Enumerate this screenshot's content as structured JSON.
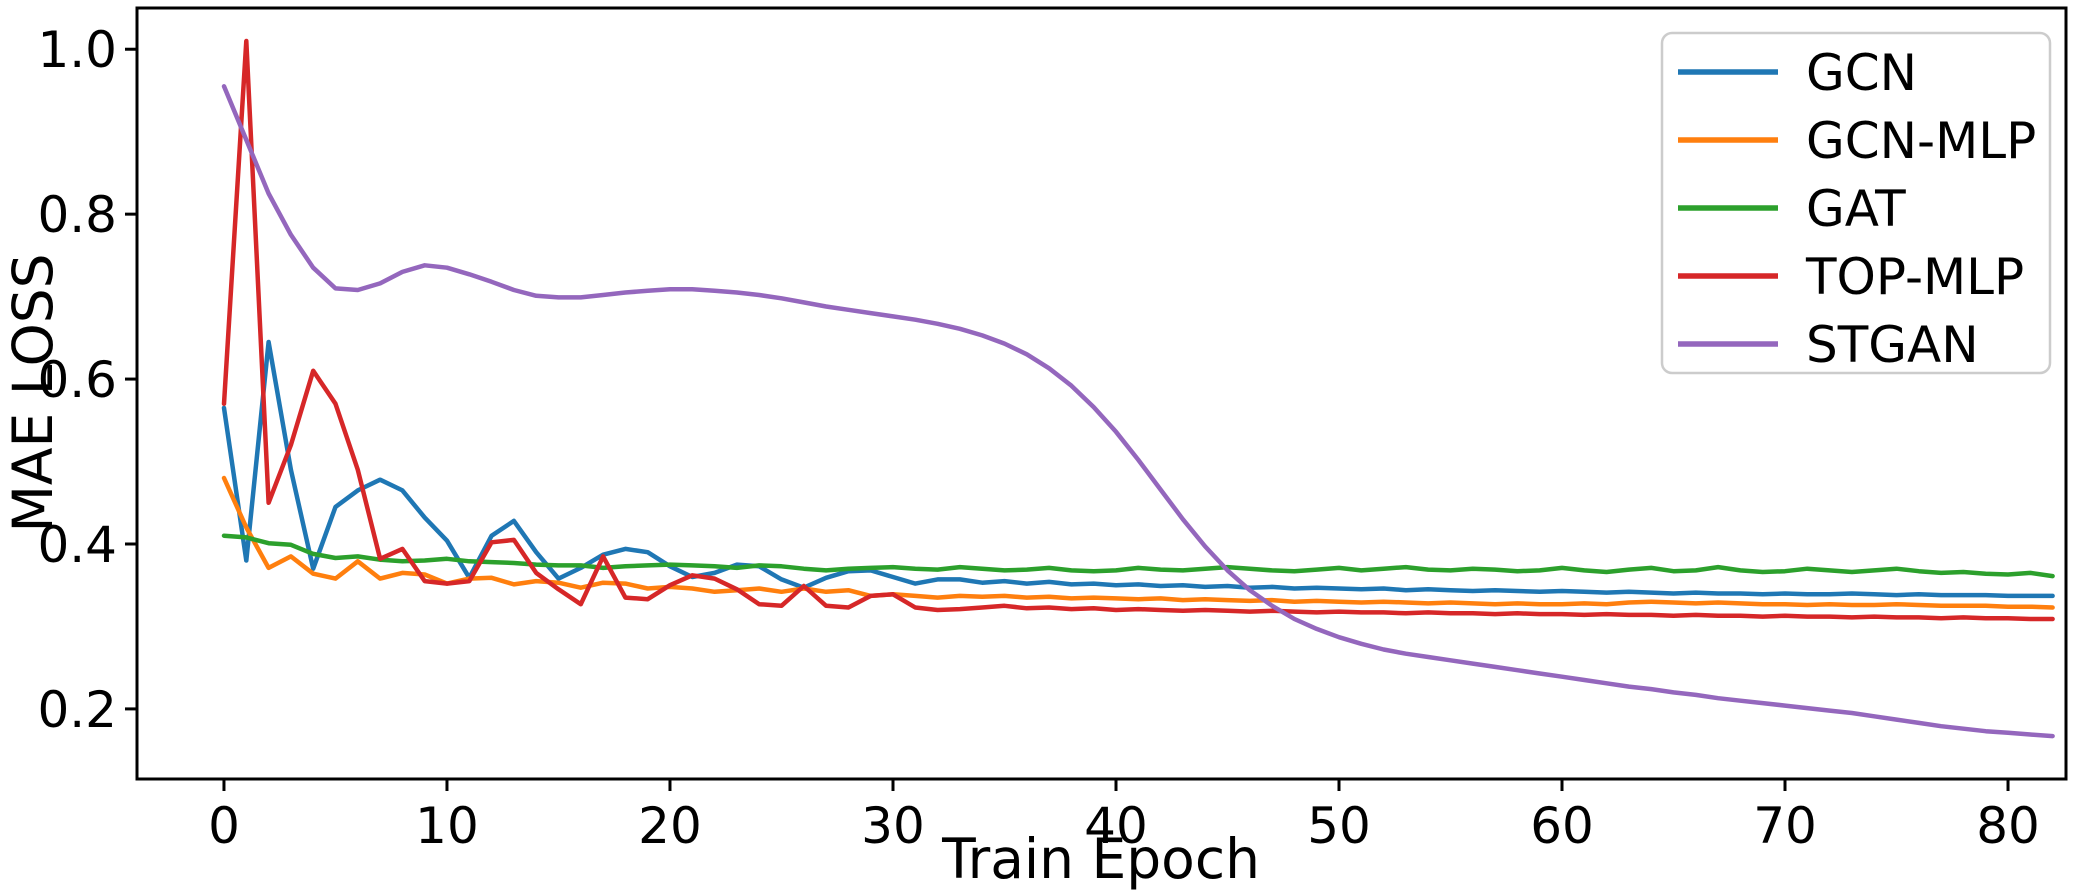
{
  "chart_data": {
    "type": "line",
    "title": "",
    "xlabel": "Train Epoch",
    "ylabel": "MAE LOSS",
    "xlim": [
      -3.9,
      82.6
    ],
    "ylim": [
      0.115,
      1.05
    ],
    "xticks": [
      0,
      10,
      20,
      30,
      40,
      50,
      60,
      70,
      80
    ],
    "xtick_labels": [
      "0",
      "10",
      "20",
      "30",
      "40",
      "50",
      "60",
      "70",
      "80"
    ],
    "yticks": [
      0.2,
      0.4,
      0.6,
      0.8,
      1.0
    ],
    "ytick_labels": [
      "0.2",
      "0.4",
      "0.6",
      "0.8",
      "1.0"
    ],
    "grid": false,
    "legend_position": "upper right",
    "x_is_epoch_index_from": 0,
    "series": [
      {
        "name": "GCN",
        "color": "#1f77b4",
        "values": [
          0.565,
          0.38,
          0.645,
          0.49,
          0.37,
          0.445,
          0.465,
          0.478,
          0.465,
          0.432,
          0.404,
          0.359,
          0.41,
          0.428,
          0.39,
          0.358,
          0.371,
          0.387,
          0.394,
          0.39,
          0.373,
          0.36,
          0.365,
          0.375,
          0.373,
          0.357,
          0.347,
          0.359,
          0.367,
          0.368,
          0.36,
          0.352,
          0.357,
          0.357,
          0.353,
          0.355,
          0.352,
          0.354,
          0.351,
          0.352,
          0.35,
          0.351,
          0.349,
          0.35,
          0.348,
          0.349,
          0.347,
          0.348,
          0.346,
          0.347,
          0.346,
          0.345,
          0.346,
          0.344,
          0.345,
          0.344,
          0.343,
          0.344,
          0.343,
          0.342,
          0.343,
          0.342,
          0.341,
          0.342,
          0.341,
          0.34,
          0.341,
          0.34,
          0.34,
          0.339,
          0.34,
          0.339,
          0.339,
          0.34,
          0.339,
          0.338,
          0.339,
          0.338,
          0.338,
          0.338,
          0.337,
          0.337,
          0.337
        ]
      },
      {
        "name": "GCN-MLP",
        "color": "#ff7f0e",
        "values": [
          0.48,
          0.42,
          0.371,
          0.385,
          0.364,
          0.358,
          0.379,
          0.358,
          0.365,
          0.363,
          0.352,
          0.358,
          0.359,
          0.351,
          0.355,
          0.353,
          0.347,
          0.353,
          0.352,
          0.346,
          0.348,
          0.346,
          0.342,
          0.344,
          0.346,
          0.342,
          0.346,
          0.342,
          0.344,
          0.337,
          0.339,
          0.337,
          0.335,
          0.337,
          0.336,
          0.337,
          0.335,
          0.336,
          0.334,
          0.335,
          0.334,
          0.333,
          0.334,
          0.332,
          0.333,
          0.332,
          0.331,
          0.332,
          0.33,
          0.331,
          0.33,
          0.329,
          0.33,
          0.329,
          0.328,
          0.329,
          0.328,
          0.327,
          0.328,
          0.327,
          0.327,
          0.328,
          0.327,
          0.329,
          0.33,
          0.329,
          0.328,
          0.329,
          0.328,
          0.327,
          0.327,
          0.326,
          0.327,
          0.326,
          0.326,
          0.327,
          0.326,
          0.325,
          0.325,
          0.325,
          0.324,
          0.324,
          0.323
        ]
      },
      {
        "name": "GAT",
        "color": "#2ca02c",
        "values": [
          0.41,
          0.408,
          0.401,
          0.399,
          0.388,
          0.383,
          0.385,
          0.381,
          0.379,
          0.38,
          0.382,
          0.379,
          0.378,
          0.377,
          0.375,
          0.374,
          0.374,
          0.371,
          0.373,
          0.374,
          0.375,
          0.374,
          0.373,
          0.371,
          0.374,
          0.373,
          0.37,
          0.368,
          0.37,
          0.371,
          0.372,
          0.37,
          0.369,
          0.372,
          0.37,
          0.368,
          0.369,
          0.371,
          0.368,
          0.367,
          0.368,
          0.371,
          0.369,
          0.368,
          0.37,
          0.372,
          0.37,
          0.368,
          0.367,
          0.369,
          0.371,
          0.368,
          0.37,
          0.372,
          0.369,
          0.368,
          0.37,
          0.369,
          0.367,
          0.368,
          0.371,
          0.368,
          0.366,
          0.369,
          0.371,
          0.367,
          0.368,
          0.372,
          0.368,
          0.366,
          0.367,
          0.37,
          0.368,
          0.366,
          0.368,
          0.37,
          0.367,
          0.365,
          0.366,
          0.364,
          0.363,
          0.365,
          0.361
        ]
      },
      {
        "name": "TOP-MLP",
        "color": "#d62728",
        "values": [
          0.57,
          1.01,
          0.45,
          0.52,
          0.61,
          0.57,
          0.49,
          0.382,
          0.394,
          0.355,
          0.352,
          0.355,
          0.402,
          0.405,
          0.365,
          0.345,
          0.327,
          0.385,
          0.335,
          0.333,
          0.35,
          0.362,
          0.358,
          0.345,
          0.327,
          0.325,
          0.349,
          0.325,
          0.323,
          0.337,
          0.339,
          0.323,
          0.32,
          0.321,
          0.323,
          0.325,
          0.322,
          0.323,
          0.321,
          0.322,
          0.32,
          0.321,
          0.32,
          0.319,
          0.32,
          0.319,
          0.318,
          0.319,
          0.318,
          0.317,
          0.318,
          0.317,
          0.317,
          0.316,
          0.317,
          0.316,
          0.316,
          0.315,
          0.316,
          0.315,
          0.315,
          0.314,
          0.315,
          0.314,
          0.314,
          0.313,
          0.314,
          0.313,
          0.313,
          0.312,
          0.313,
          0.312,
          0.312,
          0.311,
          0.312,
          0.311,
          0.311,
          0.31,
          0.311,
          0.31,
          0.31,
          0.309,
          0.309
        ]
      },
      {
        "name": "STGAN",
        "color": "#9467bd",
        "values": [
          0.955,
          0.89,
          0.825,
          0.775,
          0.735,
          0.71,
          0.708,
          0.716,
          0.73,
          0.738,
          0.735,
          0.727,
          0.718,
          0.708,
          0.701,
          0.699,
          0.699,
          0.702,
          0.705,
          0.707,
          0.709,
          0.709,
          0.707,
          0.705,
          0.702,
          0.698,
          0.693,
          0.688,
          0.684,
          0.68,
          0.676,
          0.672,
          0.667,
          0.661,
          0.653,
          0.643,
          0.63,
          0.613,
          0.592,
          0.566,
          0.536,
          0.502,
          0.466,
          0.43,
          0.397,
          0.368,
          0.344,
          0.325,
          0.309,
          0.297,
          0.287,
          0.279,
          0.272,
          0.267,
          0.263,
          0.259,
          0.255,
          0.251,
          0.247,
          0.243,
          0.239,
          0.235,
          0.231,
          0.227,
          0.224,
          0.22,
          0.217,
          0.213,
          0.21,
          0.207,
          0.204,
          0.201,
          0.198,
          0.195,
          0.191,
          0.187,
          0.183,
          0.179,
          0.176,
          0.173,
          0.171,
          0.169,
          0.167
        ]
      }
    ],
    "legend_entries": [
      "GCN",
      "GCN-MLP",
      "GAT",
      "TOP-MLP",
      "STGAN"
    ]
  }
}
